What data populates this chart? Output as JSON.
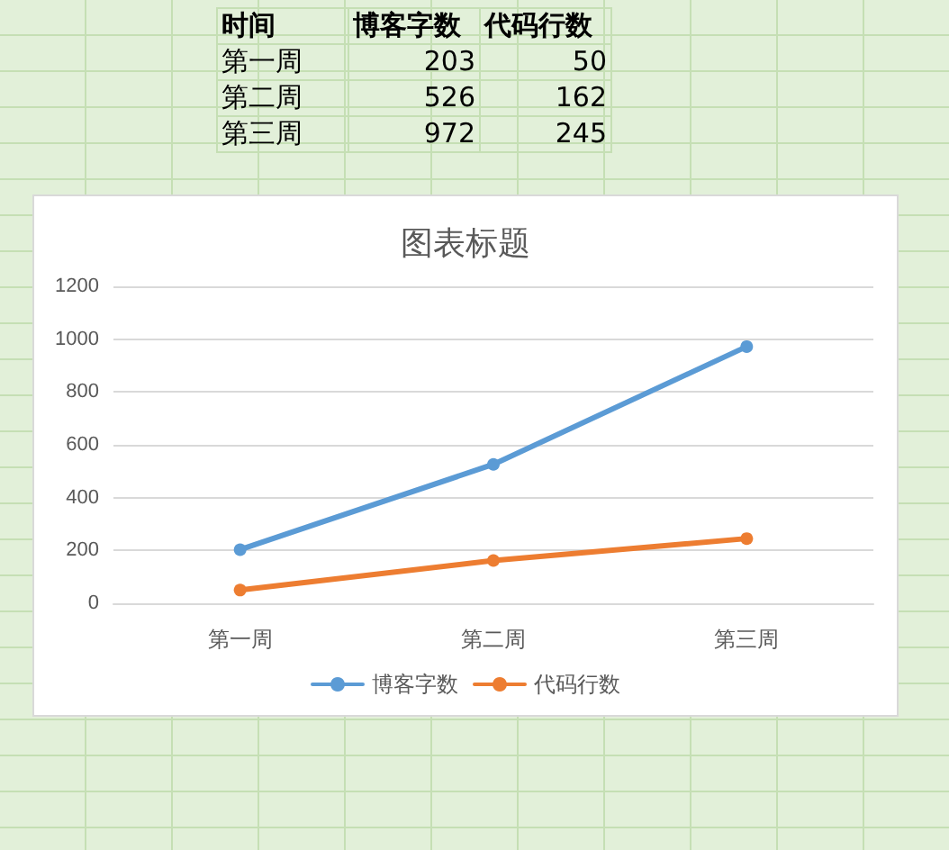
{
  "chart_data": [
    {
      "type": "other",
      "data_labels": true,
      "annotations": [
        "时间"
      ],
      "categories": [
        "第一周",
        "第二周",
        "第三周"
      ],
      "series": [
        {
          "name": "博客字数",
          "values": [
            203,
            526,
            972
          ]
        },
        {
          "name": "代码行数",
          "values": [
            50,
            162,
            245
          ]
        }
      ]
    },
    {
      "type": "line",
      "title": "图表标题",
      "categories": [
        "第一周",
        "第二周",
        "第三周"
      ],
      "series": [
        {
          "name": "博客字数",
          "color": "#5b9bd5",
          "values": [
            203,
            526,
            972
          ]
        },
        {
          "name": "代码行数",
          "color": "#ed7d31",
          "values": [
            50,
            162,
            245
          ]
        }
      ],
      "ylim": [
        0,
        1200
      ],
      "yticks": [
        0,
        200,
        400,
        600,
        800,
        {
          "value": 1000,
          "label": "1000"
        },
        {
          "value": 1200,
          "label": "1200"
        }
      ],
      "grid": "y",
      "legend": "bottom",
      "marker": "circle",
      "line_style": "solid"
    }
  ]
}
